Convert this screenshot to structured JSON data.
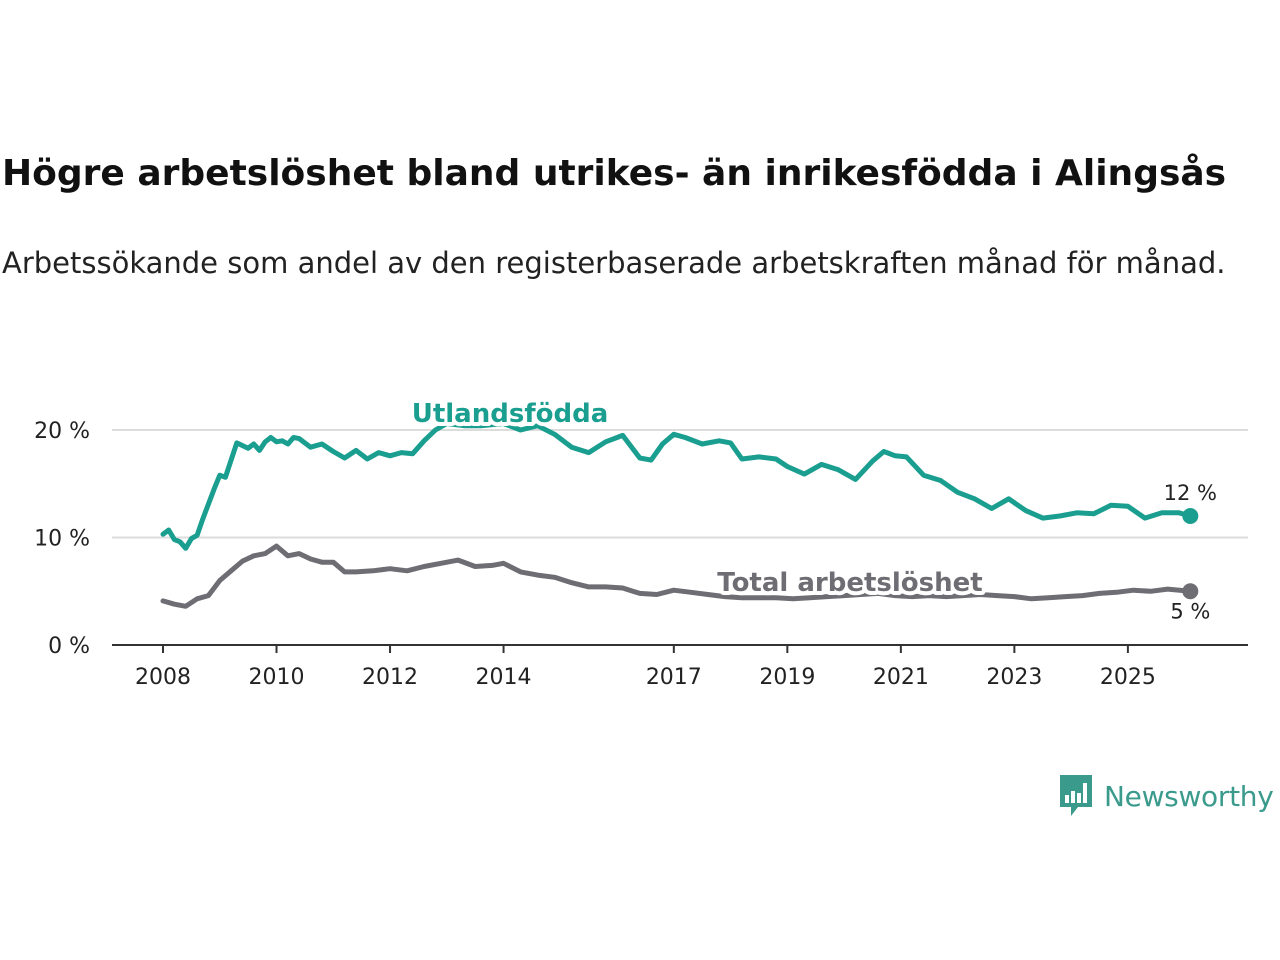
{
  "title": "Högre arbetslöshet bland utrikes- än inrikesfödda i Alingsås",
  "subtitle": "Arbetssökande som andel av den registerbaserade arbetskraften månad för månad.",
  "logo": {
    "text": "Newsworthy",
    "icon": "bar-chart-speech-bubble-icon"
  },
  "colors": {
    "foreign": "#1a9e8f",
    "total": "#6e6d73",
    "grid": "#dcdcdc",
    "axis": "#333333"
  },
  "chart_data": {
    "type": "line",
    "title": "Högre arbetslöshet bland utrikes- än inrikesfödda i Alingsås",
    "xlabel": "",
    "ylabel": "",
    "xlim": [
      2008.0,
      2026.2
    ],
    "ylim": [
      0,
      20
    ],
    "grid": true,
    "x_ticks": [
      2008,
      2010,
      2012,
      2014,
      2017,
      2019,
      2021,
      2023,
      2025
    ],
    "x_tick_labels": [
      "2008",
      "2010",
      "2012",
      "2014",
      "2017",
      "2019",
      "2021",
      "2023",
      "2025"
    ],
    "y_ticks": [
      0,
      10,
      20
    ],
    "y_tick_labels": [
      "0 %",
      "10 %",
      "20 %"
    ],
    "series": [
      {
        "name": "Utlandsfödda",
        "color": "#1a9e8f",
        "end_label": "12 %",
        "x": [
          2008.0,
          2008.1,
          2008.2,
          2008.3,
          2008.4,
          2008.5,
          2008.6,
          2008.7,
          2008.9,
          2009.0,
          2009.1,
          2009.3,
          2009.5,
          2009.6,
          2009.7,
          2009.8,
          2009.9,
          2010.0,
          2010.1,
          2010.2,
          2010.3,
          2010.4,
          2010.6,
          2010.8,
          2011.0,
          2011.2,
          2011.4,
          2011.6,
          2011.8,
          2012.0,
          2012.2,
          2012.4,
          2012.6,
          2012.8,
          2013.0,
          2013.3,
          2013.6,
          2014.0,
          2014.3,
          2014.6,
          2014.9,
          2015.2,
          2015.5,
          2015.8,
          2016.1,
          2016.4,
          2016.6,
          2016.8,
          2017.0,
          2017.2,
          2017.5,
          2017.8,
          2018.0,
          2018.2,
          2018.5,
          2018.8,
          2019.0,
          2019.3,
          2019.6,
          2019.9,
          2020.2,
          2020.5,
          2020.7,
          2020.9,
          2021.1,
          2021.4,
          2021.7,
          2022.0,
          2022.3,
          2022.6,
          2022.9,
          2023.2,
          2023.5,
          2023.8,
          2024.1,
          2024.4,
          2024.7,
          2025.0,
          2025.3,
          2025.6,
          2025.9,
          2026.1
        ],
        "values": [
          10.3,
          10.7,
          9.8,
          9.6,
          9.0,
          9.9,
          10.2,
          11.7,
          14.5,
          15.8,
          15.6,
          18.8,
          18.3,
          18.7,
          18.1,
          18.9,
          19.3,
          18.9,
          19.0,
          18.7,
          19.3,
          19.2,
          18.4,
          18.7,
          18.0,
          17.4,
          18.1,
          17.3,
          17.9,
          17.6,
          17.9,
          17.8,
          19.0,
          20.0,
          20.6,
          20.4,
          20.4,
          20.6,
          20.0,
          20.4,
          19.6,
          18.4,
          17.9,
          18.9,
          19.5,
          17.4,
          17.2,
          18.7,
          19.6,
          19.3,
          18.7,
          19.0,
          18.8,
          17.3,
          17.5,
          17.3,
          16.6,
          15.9,
          16.8,
          16.3,
          15.4,
          17.1,
          18.0,
          17.6,
          17.5,
          15.8,
          15.3,
          14.2,
          13.6,
          12.7,
          13.6,
          12.5,
          11.8,
          12.0,
          12.3,
          12.2,
          13.0,
          12.9,
          11.8,
          12.3,
          12.3,
          12.0
        ]
      },
      {
        "name": "Total arbetslöshet",
        "color": "#6e6d73",
        "end_label": "5 %",
        "x": [
          2008.0,
          2008.2,
          2008.4,
          2008.6,
          2008.8,
          2009.0,
          2009.2,
          2009.4,
          2009.6,
          2009.8,
          2010.0,
          2010.2,
          2010.4,
          2010.6,
          2010.8,
          2011.0,
          2011.2,
          2011.4,
          2011.7,
          2012.0,
          2012.3,
          2012.6,
          2012.9,
          2013.2,
          2013.5,
          2013.8,
          2014.0,
          2014.3,
          2014.6,
          2014.9,
          2015.2,
          2015.5,
          2015.8,
          2016.1,
          2016.4,
          2016.7,
          2017.0,
          2017.3,
          2017.6,
          2017.9,
          2018.2,
          2018.5,
          2018.8,
          2019.1,
          2019.4,
          2019.7,
          2020.0,
          2020.3,
          2020.6,
          2020.9,
          2021.2,
          2021.5,
          2021.8,
          2022.1,
          2022.4,
          2022.7,
          2023.0,
          2023.3,
          2023.6,
          2023.9,
          2024.2,
          2024.5,
          2024.8,
          2025.1,
          2025.4,
          2025.7,
          2026.1
        ],
        "values": [
          4.1,
          3.8,
          3.6,
          4.3,
          4.6,
          6.0,
          6.9,
          7.8,
          8.3,
          8.5,
          9.2,
          8.3,
          8.5,
          8.0,
          7.7,
          7.7,
          6.8,
          6.8,
          6.9,
          7.1,
          6.9,
          7.3,
          7.6,
          7.9,
          7.3,
          7.4,
          7.6,
          6.8,
          6.5,
          6.3,
          5.8,
          5.4,
          5.4,
          5.3,
          4.8,
          4.7,
          5.1,
          4.9,
          4.7,
          4.5,
          4.4,
          4.4,
          4.4,
          4.3,
          4.4,
          4.5,
          4.6,
          4.7,
          4.8,
          4.6,
          4.5,
          4.6,
          4.5,
          4.6,
          4.7,
          4.6,
          4.5,
          4.3,
          4.4,
          4.5,
          4.6,
          4.8,
          4.9,
          5.1,
          5.0,
          5.2,
          5.0
        ]
      }
    ]
  }
}
